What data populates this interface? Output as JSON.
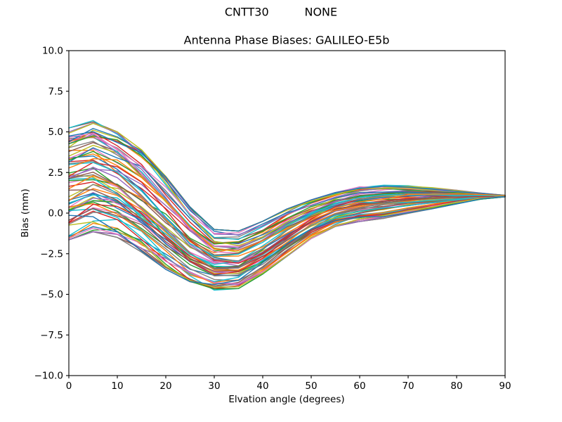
{
  "figure": {
    "background": "#ffffff",
    "suptitle": "CNTT30          NONE",
    "axes_title": "Antenna Phase Biases: GALILEO-E5b"
  },
  "chart_data": {
    "type": "line",
    "suptitle": "CNTT30          NONE",
    "title": "Antenna Phase Biases: GALILEO-E5b",
    "xlabel": "Elvation angle (degrees)",
    "ylabel": "Bias (mm)",
    "xlim": [
      0,
      90
    ],
    "ylim": [
      -10.0,
      10.0
    ],
    "grid": false,
    "legend": null,
    "x_ticks": [
      0,
      10,
      20,
      30,
      40,
      50,
      60,
      70,
      80,
      90
    ],
    "x_tick_labels": [
      "0",
      "10",
      "20",
      "30",
      "40",
      "50",
      "60",
      "70",
      "80",
      "90"
    ],
    "y_ticks": [
      -10.0,
      -7.5,
      -5.0,
      -2.5,
      0.0,
      2.5,
      5.0,
      7.5,
      10.0
    ],
    "y_tick_labels": [
      "−10.0",
      "−7.5",
      "−5.0",
      "−2.5",
      "0.0",
      "2.5",
      "5.0",
      "7.5",
      "10.0"
    ],
    "x": [
      0,
      5,
      10,
      15,
      20,
      25,
      30,
      35,
      40,
      45,
      50,
      55,
      60,
      65,
      70,
      75,
      80,
      85,
      90
    ],
    "ensemble": {
      "description": "Dense bundle of per-satellite/antenna phase-bias curves; values in mm read from plot",
      "num_curves": 72,
      "seed": 20,
      "envelope_top": [
        5.35,
        5.8,
        5.1,
        4.0,
        2.35,
        0.45,
        -0.95,
        -1.05,
        -0.45,
        0.3,
        0.85,
        1.3,
        1.65,
        1.75,
        1.75,
        1.6,
        1.45,
        1.25,
        1.1
      ],
      "envelope_bottom": [
        -1.75,
        -1.25,
        -1.6,
        -2.5,
        -3.55,
        -4.35,
        -4.8,
        -4.7,
        -3.8,
        -2.7,
        -1.6,
        -0.85,
        -0.55,
        -0.35,
        -0.05,
        0.25,
        0.55,
        0.85,
        1.0
      ],
      "mean": [
        1.8,
        2.3,
        1.75,
        0.75,
        -0.6,
        -1.95,
        -2.9,
        -2.9,
        -2.1,
        -1.2,
        -0.4,
        0.2,
        0.55,
        0.7,
        0.85,
        0.9,
        1.0,
        1.05,
        1.05
      ],
      "converge_value": 1.05,
      "palette": [
        "#1f77b4",
        "#ff7f0e",
        "#2ca02c",
        "#d62728",
        "#9467bd",
        "#8c564b",
        "#e377c2",
        "#7f7f7f",
        "#bcbd22",
        "#17becf"
      ]
    },
    "axis_color": "#000000",
    "tick_label_color": "#000000"
  }
}
